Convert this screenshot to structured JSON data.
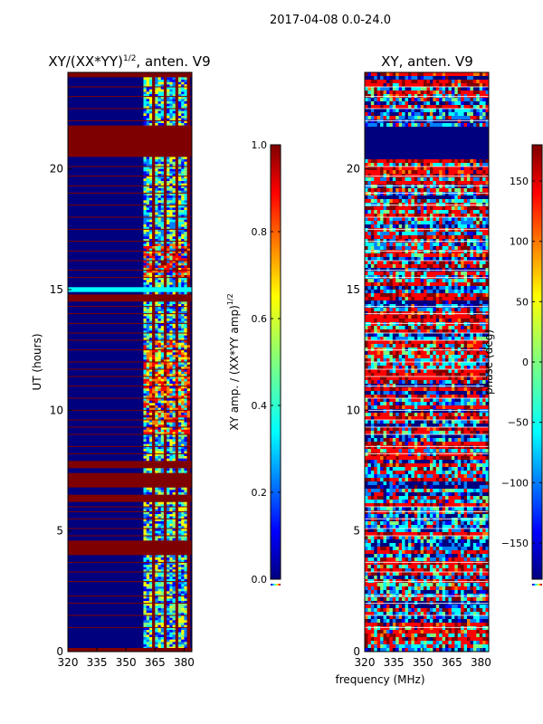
{
  "figure": {
    "suptitle": "2017-04-08 0.0-24.0",
    "xlabel": "frequency (MHz)"
  },
  "colors": {
    "jet": [
      "#00007f",
      "#0000ff",
      "#007fff",
      "#00ffff",
      "#7fff7f",
      "#ffff00",
      "#ff7f00",
      "#ff0000",
      "#7f0000"
    ]
  },
  "chart_data": [
    {
      "type": "heatmap",
      "title": "XY/(XX*YY)",
      "title_sup": "1/2",
      "title_suffix": ", anten. V9",
      "xlabel": "",
      "ylabel": "UT (hours)",
      "xlim": [
        320,
        384
      ],
      "ylim": [
        0,
        24
      ],
      "xticks": [
        {
          "v": 320,
          "label": "320"
        },
        {
          "v": 335,
          "label": "335"
        },
        {
          "v": 350,
          "label": "350"
        },
        {
          "v": 365,
          "label": "365"
        },
        {
          "v": 380,
          "label": "380"
        }
      ],
      "yticks": [
        {
          "v": 0,
          "label": "0"
        },
        {
          "v": 5,
          "label": "5"
        },
        {
          "v": 10,
          "label": "10"
        },
        {
          "v": 15,
          "label": "15"
        },
        {
          "v": 20,
          "label": "20"
        }
      ],
      "colorbar": {
        "label_main": "XY amp. / (XX*YY amp)",
        "label_sup": "1/2",
        "range": [
          0.0,
          1.0
        ],
        "ticks": [
          {
            "v": 0.0,
            "label": "0.0"
          },
          {
            "v": 0.2,
            "label": "0.2"
          },
          {
            "v": 0.4,
            "label": "0.4"
          },
          {
            "v": 0.6,
            "label": "0.6"
          },
          {
            "v": 0.8,
            "label": "0.8"
          },
          {
            "v": 1.0,
            "label": "1.0"
          }
        ]
      },
      "saturated_bands_hours": [
        [
          0.0,
          0.15
        ],
        [
          4.0,
          4.6
        ],
        [
          6.2,
          6.5
        ],
        [
          6.8,
          7.4
        ],
        [
          7.6,
          7.9
        ],
        [
          14.5,
          14.8
        ],
        [
          20.5,
          21.8
        ],
        [
          23.8,
          24.0
        ]
      ],
      "highlight_band_hours": [
        14.9,
        15.1
      ],
      "line_hours": [
        1.0,
        1.5,
        2.0,
        2.3,
        2.9,
        3.3,
        3.7,
        4.8,
        5.1,
        5.5,
        5.8,
        6.0,
        8.2,
        8.5,
        9.0,
        9.3,
        9.6,
        10.0,
        10.5,
        11.0,
        11.4,
        11.7,
        12.0,
        12.5,
        12.9,
        13.2,
        13.6,
        14.0,
        14.3,
        15.5,
        15.8,
        16.2,
        16.6,
        17.0,
        17.5,
        18.0,
        18.5,
        19.0,
        19.3,
        19.7,
        20.1,
        22.0,
        22.5,
        23.0,
        23.4
      ]
    },
    {
      "type": "heatmap",
      "title": "XY, anten. V9",
      "xlabel": "frequency (MHz)",
      "ylabel": "",
      "xlim": [
        320,
        384
      ],
      "ylim": [
        0,
        24
      ],
      "xticks": [
        {
          "v": 320,
          "label": "320"
        },
        {
          "v": 335,
          "label": "335"
        },
        {
          "v": 350,
          "label": "350"
        },
        {
          "v": 365,
          "label": "365"
        },
        {
          "v": 380,
          "label": "380"
        }
      ],
      "yticks": [
        {
          "v": 0,
          "label": "0"
        },
        {
          "v": 5,
          "label": "5"
        },
        {
          "v": 10,
          "label": "10"
        },
        {
          "v": 15,
          "label": "15"
        },
        {
          "v": 20,
          "label": "20"
        }
      ],
      "colorbar": {
        "label_main": "phase (deg)",
        "range": [
          -180,
          180
        ],
        "ticks": [
          {
            "v": -150,
            "label": "−150"
          },
          {
            "v": -100,
            "label": "−100"
          },
          {
            "v": -50,
            "label": "−50"
          },
          {
            "v": 0,
            "label": "0"
          },
          {
            "v": 50,
            "label": "50"
          },
          {
            "v": 100,
            "label": "100"
          },
          {
            "v": 150,
            "label": "150"
          }
        ]
      }
    }
  ]
}
